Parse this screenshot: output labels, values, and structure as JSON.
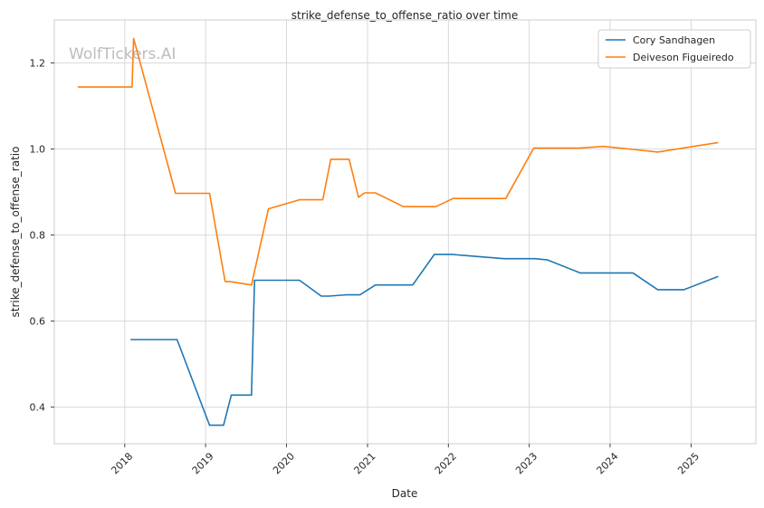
{
  "watermark": "WolfTickers.AI",
  "chart_data": {
    "type": "line",
    "title": "strike_defense_to_offense_ratio over time",
    "xlabel": "Date",
    "ylabel": "strike_defense_to_offense_ratio",
    "x_ticks": [
      "2018",
      "2019",
      "2020",
      "2021",
      "2022",
      "2023",
      "2024",
      "2025"
    ],
    "y_ticks": [
      "0.4",
      "0.6",
      "0.8",
      "1.0",
      "1.2"
    ],
    "xlim": [
      "2017-02-17",
      "2025-10-20"
    ],
    "ylim": [
      0.315,
      1.3
    ],
    "grid": true,
    "legend_position": "top-right",
    "series": [
      {
        "name": "Cory Sandhagen",
        "color": "#1f77b4",
        "points": [
          [
            "2018-01-27",
            0.557
          ],
          [
            "2018-08-25",
            0.557
          ],
          [
            "2019-01-19",
            0.358
          ],
          [
            "2019-03-23",
            0.358
          ],
          [
            "2019-04-27",
            0.428
          ],
          [
            "2019-07-27",
            0.428
          ],
          [
            "2019-08-10",
            0.695
          ],
          [
            "2020-02-29",
            0.695
          ],
          [
            "2020-06-06",
            0.658
          ],
          [
            "2020-07-11",
            0.658
          ],
          [
            "2020-09-26",
            0.661
          ],
          [
            "2020-11-28",
            0.661
          ],
          [
            "2021-02-06",
            0.684
          ],
          [
            "2021-07-24",
            0.684
          ],
          [
            "2021-10-30",
            0.755
          ],
          [
            "2022-01-15",
            0.755
          ],
          [
            "2022-09-10",
            0.745
          ],
          [
            "2023-01-28",
            0.745
          ],
          [
            "2023-03-25",
            0.742
          ],
          [
            "2023-08-19",
            0.712
          ],
          [
            "2024-04-13",
            0.712
          ],
          [
            "2024-08-03",
            0.673
          ],
          [
            "2024-11-30",
            0.673
          ],
          [
            "2025-05-03",
            0.704
          ]
        ]
      },
      {
        "name": "Deiveson Figueiredo",
        "color": "#ff7f0e",
        "points": [
          [
            "2017-06-03",
            1.144
          ],
          [
            "2018-02-03",
            1.144
          ],
          [
            "2018-02-10",
            1.257
          ],
          [
            "2018-08-18",
            0.897
          ],
          [
            "2019-01-19",
            0.897
          ],
          [
            "2019-03-30",
            0.692
          ],
          [
            "2019-04-21",
            0.692
          ],
          [
            "2019-07-27",
            0.684
          ],
          [
            "2019-10-12",
            0.861
          ],
          [
            "2020-02-29",
            0.882
          ],
          [
            "2020-06-13",
            0.882
          ],
          [
            "2020-07-19",
            0.976
          ],
          [
            "2020-10-10",
            0.976
          ],
          [
            "2020-11-21",
            0.888
          ],
          [
            "2020-12-19",
            0.898
          ],
          [
            "2021-02-06",
            0.898
          ],
          [
            "2021-06-12",
            0.866
          ],
          [
            "2021-11-06",
            0.866
          ],
          [
            "2022-01-22",
            0.885
          ],
          [
            "2022-09-17",
            0.885
          ],
          [
            "2023-01-21",
            1.002
          ],
          [
            "2023-08-12",
            1.002
          ],
          [
            "2023-12-02",
            1.006
          ],
          [
            "2024-05-04",
            0.998
          ],
          [
            "2024-08-03",
            0.993
          ],
          [
            "2025-05-03",
            1.015
          ]
        ]
      }
    ]
  }
}
